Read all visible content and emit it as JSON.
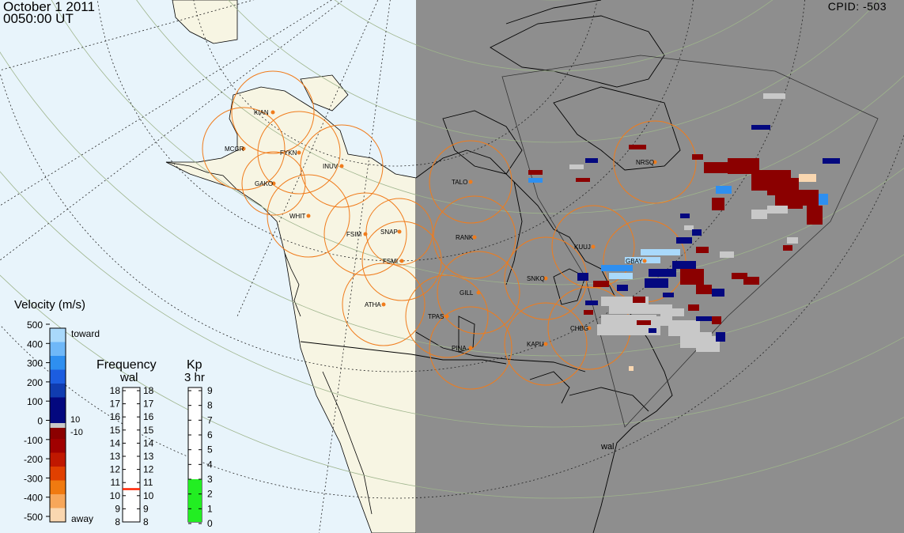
{
  "header": {
    "date": "October 1 2011",
    "time": "0050:00 UT",
    "cpid": "CPID:  -503"
  },
  "radar_label": "wal",
  "stations": [
    {
      "code": "KIAN"
    },
    {
      "code": "MCGR"
    },
    {
      "code": "FYKN"
    },
    {
      "code": "INUV"
    },
    {
      "code": "GAKO"
    },
    {
      "code": "WHIT"
    },
    {
      "code": "FSIM"
    },
    {
      "code": "SNAP"
    },
    {
      "code": "FSMI"
    },
    {
      "code": "ATHA"
    },
    {
      "code": "TALO"
    },
    {
      "code": "RANK"
    },
    {
      "code": "GILL"
    },
    {
      "code": "TPAS"
    },
    {
      "code": "PINA"
    },
    {
      "code": "KAPU"
    },
    {
      "code": "SNKQ"
    },
    {
      "code": "KUUJ"
    },
    {
      "code": "GBAY"
    },
    {
      "code": "CHBG"
    },
    {
      "code": "NRSQ"
    }
  ],
  "velocity_legend": {
    "title": "Velocity (m/s)",
    "ticks": [
      "500",
      "400",
      "300",
      "200",
      "100",
      "0",
      "-100",
      "-200",
      "-300",
      "-400",
      "-500"
    ],
    "toward": "toward",
    "away": "away",
    "plus_label": "10",
    "minus_label": "-10"
  },
  "frequency_legend": {
    "title": "Frequency",
    "subtitle": "wal",
    "ticks": [
      "18",
      "17",
      "16",
      "15",
      "14",
      "13",
      "12",
      "11",
      "10",
      "9",
      "8"
    ],
    "current_mhz": 10.5
  },
  "kp_legend": {
    "title": "Kp",
    "subtitle": "3 hr",
    "ticks": [
      "9",
      "8",
      "7",
      "6",
      "5",
      "4",
      "3",
      "2",
      "1",
      "0"
    ],
    "value": 3
  },
  "colors": {
    "ocean": "#e8f4fb",
    "land": "#f7f5e3",
    "night": "#8e8e8e",
    "fov_ring": "#f07c1c",
    "grid": "#9eb48c",
    "toward_light": "#a9d9fb",
    "toward_mid": "#2e8ff0",
    "toward_dark": "#03087f",
    "away_dark": "#8b0000",
    "away_mid": "#e04000",
    "away_light": "#f9d7b0",
    "ground_scatter": "#c8c8c8",
    "kp_fill": "#22ee22",
    "freq_marker": "#ff2200"
  }
}
